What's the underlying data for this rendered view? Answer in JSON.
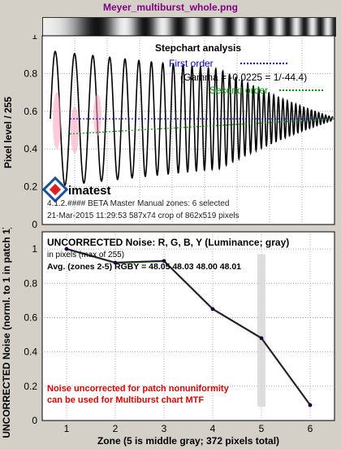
{
  "window_title": "Meyer_multiburst_whole.png",
  "top_chart": {
    "title": "Stepchart analysis",
    "ylabel": "Pixel level / 255",
    "ylim": [
      0,
      1
    ],
    "yticks": [
      "0",
      "0.2",
      "0.4",
      "0.6",
      "0.8",
      "1"
    ],
    "legend": {
      "first_order": "First order",
      "gamma": "(Gamma = -0.0225 = 1/-44.4)",
      "second_order": "Second order"
    },
    "logo_text": "imatest",
    "info_line1": "4.1.2.#### BETA  Master  Manual zones:  6 selected",
    "info_line2": "21-Mar-2015 11:29:53      587x74 crop of 862x519 pixels"
  },
  "chart_data": [
    {
      "type": "line",
      "title": "Stepchart analysis",
      "ylabel": "Pixel level / 255",
      "ylim": [
        0,
        1
      ],
      "series": [
        {
          "name": "First order",
          "color": "#0000cc",
          "y": 0.56
        },
        {
          "name": "Second order",
          "color": "#009900",
          "y": 0.56
        }
      ]
    },
    {
      "type": "line",
      "title": "UNCORRECTED Noise: R, G, B, Y (Luminance; gray)",
      "subtitle": "in pixels (max of 255)",
      "stats": "Avg. (zones 2-5) RGBY = 48.05 48.03 48.00 48.01",
      "xlabel": "Zone  (5 is middle gray;  372 pixels total)",
      "ylabel": "UNCORRECTED Noise (norml. to 1 in patch 1)",
      "x": [
        1,
        2,
        3,
        4,
        5,
        6
      ],
      "xlim": [
        0.5,
        6.5
      ],
      "ylim": [
        0,
        1.1
      ],
      "xticks": [
        "1",
        "2",
        "3",
        "4",
        "5",
        "6"
      ],
      "yticks": [
        "0",
        "0.2",
        "0.4",
        "0.6",
        "0.8",
        "1"
      ],
      "values": [
        1.0,
        0.92,
        0.93,
        0.65,
        0.48,
        0.09
      ],
      "highlight_zone": 5,
      "annotation": [
        "Noise uncorrected for patch nonuniformity",
        "can be used for Multiburst chart MTF"
      ]
    }
  ]
}
